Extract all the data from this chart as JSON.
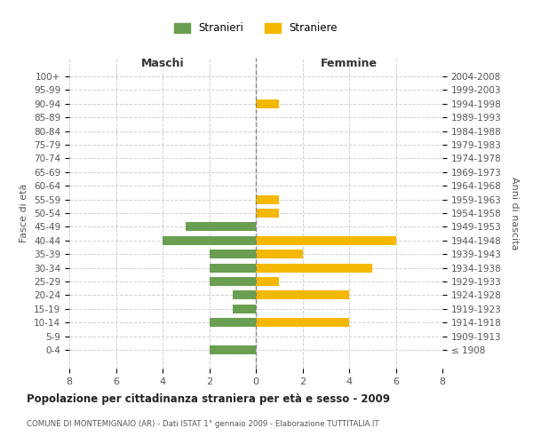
{
  "age_groups": [
    "100+",
    "95-99",
    "90-94",
    "85-89",
    "80-84",
    "75-79",
    "70-74",
    "65-69",
    "60-64",
    "55-59",
    "50-54",
    "45-49",
    "40-44",
    "35-39",
    "30-34",
    "25-29",
    "20-24",
    "15-19",
    "10-14",
    "5-9",
    "0-4"
  ],
  "birth_years": [
    "≤ 1908",
    "1909-1913",
    "1914-1918",
    "1919-1923",
    "1924-1928",
    "1929-1933",
    "1934-1938",
    "1939-1943",
    "1944-1948",
    "1949-1953",
    "1954-1958",
    "1959-1963",
    "1964-1968",
    "1969-1973",
    "1974-1978",
    "1979-1983",
    "1984-1988",
    "1989-1993",
    "1994-1998",
    "1999-2003",
    "2004-2008"
  ],
  "maschi": [
    0,
    0,
    0,
    0,
    0,
    0,
    0,
    0,
    0,
    0,
    0,
    3,
    4,
    2,
    2,
    2,
    1,
    1,
    2,
    0,
    2
  ],
  "femmine": [
    0,
    0,
    1,
    0,
    0,
    0,
    0,
    0,
    0,
    1,
    1,
    0,
    6,
    2,
    5,
    1,
    4,
    0,
    4,
    0,
    0
  ],
  "color_maschi": "#6a9e50",
  "color_femmine": "#f5b800",
  "title": "Popolazione per cittadinanza straniera per età e sesso - 2009",
  "subtitle": "COMUNE DI MONTEMIGNAIO (AR) - Dati ISTAT 1° gennaio 2009 - Elaborazione TUTTITALIA.IT",
  "label_maschi": "Maschi",
  "label_femmine": "Femmine",
  "ylabel_left": "Fasce di età",
  "ylabel_right": "Anni di nascita",
  "legend_maschi": "Stranieri",
  "legend_femmine": "Straniere",
  "xlim": 8,
  "background_color": "#ffffff",
  "grid_color": "#cccccc"
}
